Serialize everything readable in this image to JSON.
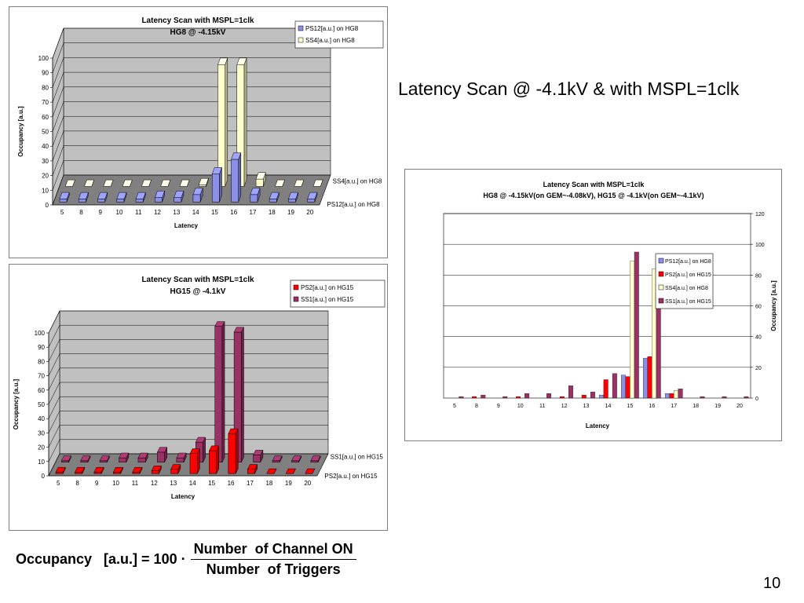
{
  "slide": {
    "title": "Latency Scan @ -4.1kV & with MSPL=1clk",
    "page_number": "10",
    "formula": {
      "lhs": "Occupancy   [a.u.] = 100 ·",
      "numerator": "Number  of Channel ON",
      "denominator": "Number  of Triggers"
    }
  },
  "colors": {
    "PS12": "#8a8fe8",
    "SS4": "#ffffcc",
    "PS2": "#ff0000",
    "SS1": "#993366",
    "wall": "#c0c0c0",
    "floor": "#808080"
  },
  "chart_data": [
    {
      "type": "bar",
      "title": "Latency Scan with MSPL=1clk",
      "subtitle": "HG8 @ -4.15kV",
      "xlabel": "Latency",
      "ylabel": "Occupancy [a.u.]",
      "ylim": [
        0,
        100
      ],
      "yticks": [
        0,
        10,
        20,
        30,
        40,
        50,
        60,
        70,
        80,
        90,
        100
      ],
      "categories": [
        "5",
        "8",
        "9",
        "10",
        "11",
        "12",
        "13",
        "14",
        "15",
        "16",
        "17",
        "18",
        "19",
        "20"
      ],
      "series": [
        {
          "name": "PS12[a.u.] on HG8",
          "color_key": "PS12",
          "values": [
            2,
            2,
            2,
            2,
            2,
            3,
            3,
            5,
            19,
            29,
            5,
            2,
            2,
            2
          ]
        },
        {
          "name": "SS4[a.u.] on HG8",
          "color_key": "SS4",
          "values": [
            0,
            0,
            0,
            0,
            0,
            0,
            0,
            1,
            83,
            83,
            5,
            0,
            0,
            0
          ]
        }
      ],
      "legend": "top-right"
    },
    {
      "type": "bar",
      "title": "Latency Scan with MSPL=1clk",
      "subtitle": "HG15 @ -4.1kV",
      "xlabel": "Latency",
      "ylabel": "Occupancy [a.u.]",
      "ylim": [
        0,
        100
      ],
      "yticks": [
        0,
        10,
        20,
        30,
        40,
        50,
        60,
        70,
        80,
        90,
        100
      ],
      "categories": [
        "5",
        "8",
        "9",
        "10",
        "11",
        "12",
        "13",
        "14",
        "15",
        "16",
        "17",
        "18",
        "19",
        "20"
      ],
      "series": [
        {
          "name": "PS2[a.u.] on HG15",
          "color_key": "PS2",
          "values": [
            1,
            1,
            1,
            1,
            1,
            2,
            3,
            14,
            16,
            28,
            3,
            0,
            0,
            0
          ]
        },
        {
          "name": "SS1[a.u.] on HG15",
          "color_key": "SS1",
          "values": [
            1,
            1,
            1,
            3,
            3,
            7,
            3,
            14,
            95,
            91,
            5,
            1,
            1,
            1
          ]
        }
      ],
      "legend": "top-right"
    },
    {
      "type": "bar",
      "title": "Latency Scan with MSPL=1clk",
      "subtitle": "HG8 @ -4.15kV(on GEM~-4.08kV), HG15 @ -4.1kV(on GEM~-4.1kV)",
      "xlabel": "Latency",
      "ylabel": "Occupancy [a.u.]",
      "ylim": [
        0,
        120
      ],
      "yticks": [
        0,
        20,
        40,
        60,
        80,
        100,
        120
      ],
      "categories": [
        "5",
        "8",
        "9",
        "10",
        "11",
        "12",
        "13",
        "14",
        "15",
        "16",
        "17",
        "18",
        "19",
        "20"
      ],
      "series": [
        {
          "name": "PS12[a.u.] on HG8",
          "color_key": "PS12",
          "values": [
            0,
            0,
            0,
            0,
            0,
            0,
            0,
            2,
            15,
            26,
            3,
            0,
            0,
            0
          ]
        },
        {
          "name": "PS2[a.u.] on HG15",
          "color_key": "PS2",
          "values": [
            0,
            1,
            0,
            1,
            0,
            1,
            2,
            12,
            14,
            27,
            3,
            0,
            0,
            0
          ]
        },
        {
          "name": "SS4[a.u.] on HG8",
          "color_key": "SS4",
          "values": [
            0,
            0,
            0,
            0,
            0,
            0,
            0,
            0,
            89,
            84,
            5,
            0,
            0,
            0
          ]
        },
        {
          "name": "SS1[a.u.] on HG15",
          "color_key": "SS1",
          "values": [
            1,
            2,
            1,
            3,
            3,
            8,
            4,
            16,
            95,
            90,
            6,
            1,
            1,
            1
          ]
        }
      ],
      "legend": "right"
    }
  ]
}
